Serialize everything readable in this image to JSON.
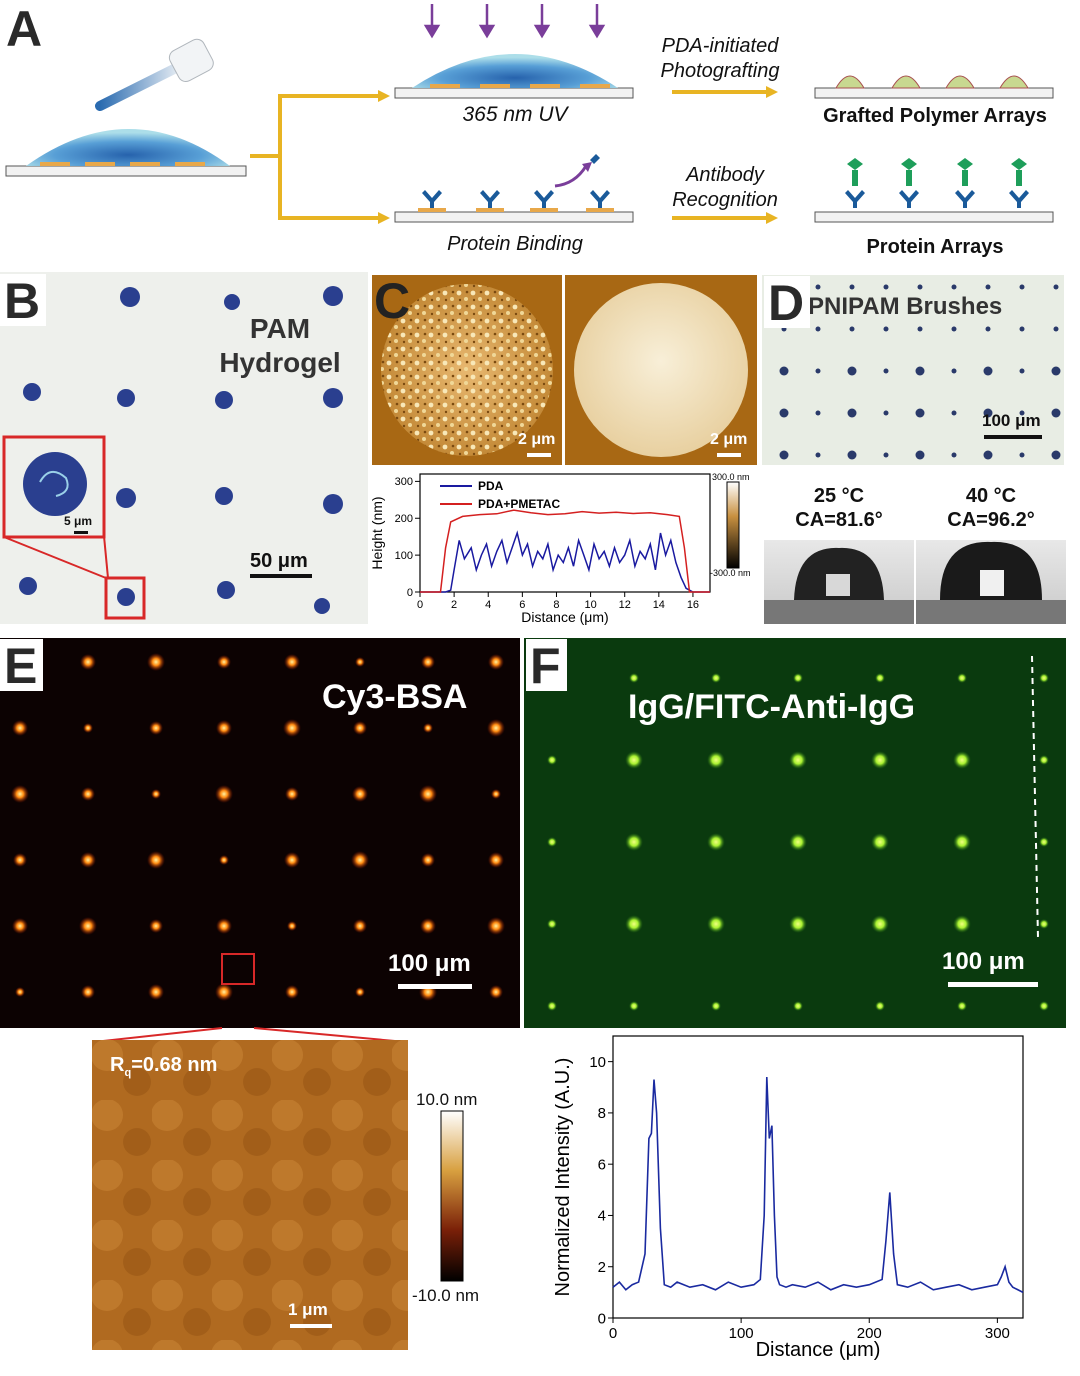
{
  "panel_labels": {
    "a": "A",
    "b": "B",
    "c": "C",
    "d": "D",
    "e": "E",
    "f": "F"
  },
  "schematic": {
    "uv_label": "365 nm UV",
    "binding_label": "Protein Binding",
    "photograft_label_1": "PDA-initiated",
    "photograft_label_2": "Photografting",
    "antibody_label_1": "Antibody",
    "antibody_label_2": "Recognition",
    "polymer_result": "Grafted Polymer Arrays",
    "protein_result": "Protein Arrays",
    "colors": {
      "arrow": "#e8b423",
      "uv": "#7a3e9a",
      "droplet": "#4a8ec8",
      "antibody": "#1a5a9a",
      "anti_igg": "#1e9e5a"
    }
  },
  "panel_b": {
    "title_1": "PAM",
    "title_2": "Hydrogel",
    "scale_main": "50 μm",
    "scale_inset": "5 μm"
  },
  "panel_c": {
    "scale_left": "2 μm",
    "scale_right": "2 μm",
    "colorbar_top": "300.0 nm",
    "colorbar_bottom": "-300.0 nm",
    "chart_data": {
      "type": "line",
      "xlabel": "Distance (μm)",
      "ylabel": "Height (nm)",
      "xlim": [
        0,
        17
      ],
      "ylim": [
        0,
        320
      ],
      "xticks": [
        0,
        2,
        4,
        6,
        8,
        10,
        12,
        14,
        16
      ],
      "yticks": [
        0,
        100,
        200,
        300
      ],
      "series": [
        {
          "name": "PDA",
          "color": "#1a1aa0",
          "x": [
            0,
            1.5,
            1.8,
            2.0,
            2.3,
            2.6,
            3.0,
            3.3,
            3.6,
            3.9,
            4.2,
            4.5,
            4.8,
            5.1,
            5.4,
            5.7,
            6.0,
            6.3,
            6.6,
            6.9,
            7.2,
            7.5,
            7.8,
            8.1,
            8.4,
            8.7,
            9.0,
            9.3,
            9.6,
            9.9,
            10.2,
            10.5,
            10.8,
            11.1,
            11.4,
            11.7,
            12.0,
            12.3,
            12.6,
            12.9,
            13.2,
            13.5,
            13.8,
            14.1,
            14.4,
            14.7,
            15.0,
            15.3,
            15.6,
            16.0,
            17.0
          ],
          "y": [
            0,
            0,
            5,
            60,
            140,
            90,
            120,
            60,
            100,
            130,
            70,
            110,
            140,
            80,
            120,
            160,
            100,
            130,
            70,
            110,
            90,
            130,
            60,
            100,
            80,
            120,
            70,
            140,
            100,
            60,
            130,
            90,
            110,
            70,
            120,
            80,
            100,
            140,
            70,
            110,
            90,
            130,
            60,
            160,
            100,
            140,
            80,
            40,
            10,
            0,
            0
          ]
        },
        {
          "name": "PDA+PMETAC",
          "color": "#d42020",
          "x": [
            0,
            1.2,
            1.5,
            1.8,
            2.5,
            3.5,
            4.5,
            5.5,
            6.5,
            7.5,
            8.5,
            9.5,
            10.5,
            11.5,
            12.5,
            13.5,
            14.5,
            15.2,
            15.5,
            15.8,
            17.0
          ],
          "y": [
            0,
            0,
            120,
            190,
            205,
            210,
            212,
            222,
            215,
            210,
            212,
            218,
            214,
            216,
            213,
            215,
            210,
            205,
            120,
            0,
            0
          ]
        }
      ]
    }
  },
  "panel_d": {
    "title": "PNIPAM Brushes",
    "scale": "100 μm",
    "temp_left": "25 °C",
    "ca_left": "CA=81.6°",
    "temp_right": "40 °C",
    "ca_right": "CA=96.2°"
  },
  "panel_e": {
    "title": "Cy3-BSA",
    "scale": "100 μm",
    "rq_prefix": "R",
    "rq_sub": "q",
    "rq_value": "=0.68 nm",
    "bar_top": "10.0 nm",
    "bar_bottom": "-10.0 nm",
    "afm_scale": "1 μm"
  },
  "panel_f": {
    "title": "IgG/FITC-Anti-IgG",
    "scale": "100 μm",
    "chart_data": {
      "type": "line",
      "xlabel": "Distance (μm)",
      "ylabel": "Normalized Intensity (A.U.)",
      "xlim": [
        0,
        320
      ],
      "ylim": [
        0,
        11
      ],
      "xticks": [
        0,
        100,
        200,
        300
      ],
      "yticks": [
        0,
        2,
        4,
        6,
        8,
        10
      ],
      "series": [
        {
          "color": "#1a2aa0",
          "x": [
            0,
            5,
            10,
            15,
            20,
            25,
            28,
            30,
            32,
            34,
            37,
            40,
            45,
            50,
            60,
            70,
            80,
            90,
            100,
            110,
            115,
            118,
            120,
            122,
            124,
            126,
            128,
            130,
            135,
            140,
            150,
            160,
            170,
            180,
            190,
            200,
            210,
            213,
            216,
            219,
            222,
            230,
            240,
            250,
            260,
            270,
            280,
            290,
            300,
            303,
            306,
            309,
            312,
            320
          ],
          "y": [
            1.2,
            1.4,
            1.1,
            1.3,
            1.4,
            2.5,
            7.0,
            7.2,
            9.3,
            8.0,
            3.5,
            1.3,
            1.2,
            1.4,
            1.2,
            1.3,
            1.1,
            1.4,
            1.2,
            1.3,
            1.5,
            4.0,
            9.4,
            7.0,
            7.5,
            4.0,
            1.6,
            1.3,
            1.2,
            1.3,
            1.2,
            1.4,
            1.1,
            1.3,
            1.2,
            1.3,
            1.5,
            3.0,
            4.9,
            2.5,
            1.3,
            1.2,
            1.4,
            1.1,
            1.2,
            1.3,
            1.1,
            1.2,
            1.3,
            1.6,
            2.0,
            1.4,
            1.2,
            1.0
          ]
        }
      ]
    }
  }
}
